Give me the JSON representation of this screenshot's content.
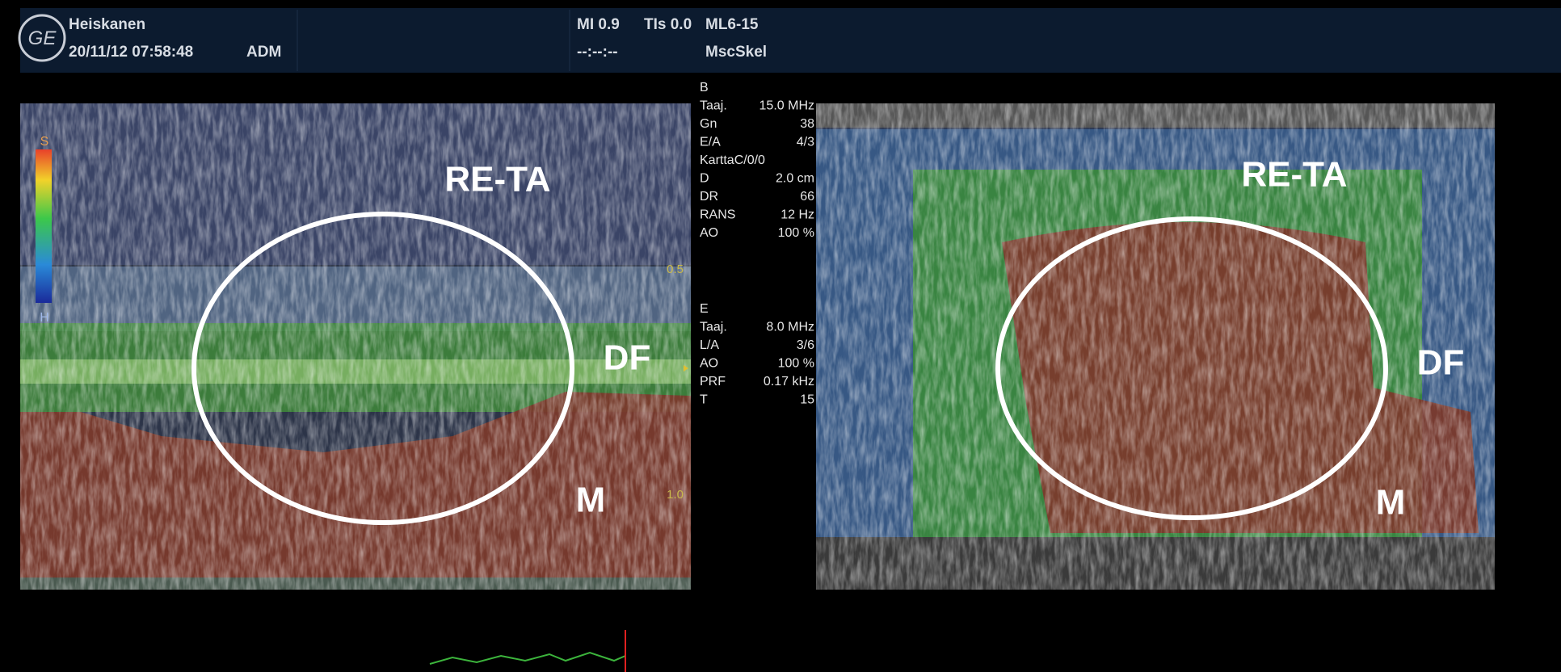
{
  "header": {
    "name": "Heiskanen",
    "datetime": "20/11/12 07:58:48",
    "operator": "ADM",
    "mi": "MI 0.9",
    "tis": "TIs 0.0",
    "probe": "ML6-15",
    "time": "--:--:--",
    "preset": "MscSkel"
  },
  "params_b": {
    "mode": "B",
    "rows": [
      [
        "Taaj.",
        "15.0 MHz"
      ],
      [
        "Gn",
        "38"
      ],
      [
        "E/A",
        "4/3"
      ],
      [
        "KarttaC/0/0",
        ""
      ],
      [
        "D",
        "2.0 cm"
      ],
      [
        "DR",
        "66"
      ],
      [
        "RANS",
        "12 Hz"
      ],
      [
        "AO",
        "100 %"
      ]
    ]
  },
  "params_e": {
    "mode": "E",
    "rows": [
      [
        "Taaj.",
        "8.0 MHz"
      ],
      [
        "L/A",
        "3/6"
      ],
      [
        "AO",
        "100 %"
      ],
      [
        "PRF",
        "0.17 kHz"
      ],
      [
        "T",
        "15"
      ]
    ]
  },
  "scale": {
    "top": "S",
    "bottom": "H"
  },
  "depth_ticks": [
    "0.5",
    "1.0"
  ],
  "left_image": {
    "labels": [
      "RE-TA",
      "DF",
      "M"
    ]
  },
  "right_image": {
    "labels": [
      "RE-TA",
      "DF",
      "M"
    ]
  }
}
